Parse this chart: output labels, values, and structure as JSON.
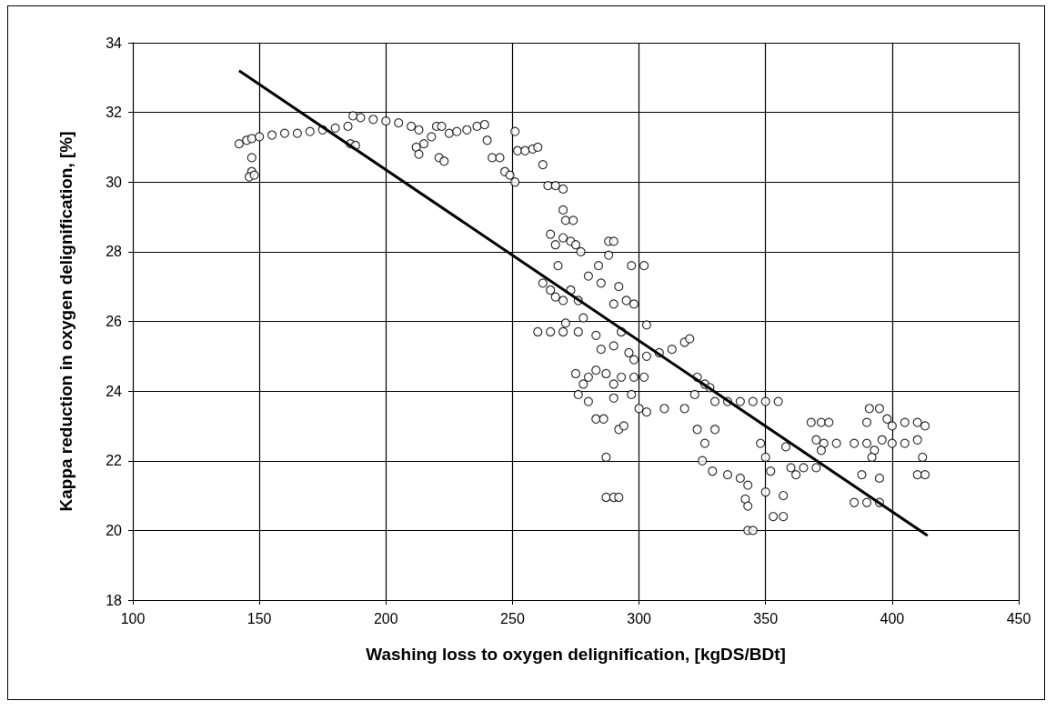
{
  "chart_data": {
    "type": "scatter",
    "xlabel": "Washing loss to oxygen delignification, [kgDS/BDt]",
    "ylabel": "Kappa reduction in oxygen delignification, [%]",
    "xlim": [
      100,
      450
    ],
    "xticks": [
      100,
      150,
      200,
      250,
      300,
      350,
      400,
      450
    ],
    "ylim": [
      18,
      34
    ],
    "yticks": [
      18,
      20,
      22,
      24,
      26,
      28,
      30,
      32,
      34
    ],
    "grid": true,
    "series": [
      {
        "color": "#000000",
        "marker": "circle",
        "x": [
          142,
          145,
          147,
          150,
          155,
          160,
          165,
          170,
          175,
          180,
          185,
          187,
          190,
          195,
          200,
          205,
          210,
          213,
          147,
          147,
          146,
          148,
          186,
          188,
          212,
          213,
          215,
          218,
          220,
          222,
          221,
          223,
          225,
          228,
          232,
          236,
          239,
          240,
          242,
          245,
          247,
          249,
          251,
          251,
          252,
          255,
          258,
          260,
          262,
          264,
          267,
          270,
          270,
          271,
          274,
          265,
          267,
          270,
          273,
          268,
          275,
          277,
          262,
          265,
          267,
          270,
          273,
          276,
          280,
          284,
          288,
          290,
          288,
          285,
          292,
          297,
          302,
          295,
          298,
          290,
          278,
          271,
          260,
          265,
          270,
          276,
          283,
          285,
          290,
          293,
          296,
          298,
          303,
          275,
          278,
          280,
          283,
          287,
          290,
          293,
          298,
          302,
          276,
          280,
          283,
          286,
          290,
          292,
          294,
          297,
          300,
          303,
          287,
          287,
          290,
          292,
          303,
          308,
          313,
          318,
          320,
          323,
          322,
          310,
          318,
          326,
          328,
          330,
          335,
          340,
          345,
          350,
          355,
          323,
          330,
          326,
          325,
          329,
          335,
          340,
          343,
          342,
          343,
          343,
          345,
          348,
          350,
          352,
          350,
          353,
          357,
          358,
          360,
          362,
          357,
          365,
          370,
          373,
          378,
          385,
          368,
          372,
          375,
          370,
          372,
          388,
          395,
          385,
          390,
          395,
          390,
          393,
          391,
          395,
          390,
          398,
          400,
          405,
          410,
          413,
          400,
          405,
          410,
          412,
          410,
          413,
          396,
          392
        ],
        "values": [
          31.1,
          31.2,
          31.25,
          31.3,
          31.35,
          31.4,
          31.4,
          31.45,
          31.5,
          31.55,
          31.6,
          31.9,
          31.85,
          31.8,
          31.75,
          31.7,
          31.6,
          31.5,
          30.7,
          30.3,
          30.15,
          30.2,
          31.1,
          31.05,
          31.0,
          30.8,
          31.1,
          31.3,
          31.6,
          31.6,
          30.7,
          30.6,
          31.4,
          31.45,
          31.5,
          31.6,
          31.65,
          31.2,
          30.7,
          30.7,
          30.3,
          30.2,
          31.45,
          30.0,
          30.9,
          30.9,
          30.95,
          31.0,
          30.5,
          29.9,
          29.9,
          29.8,
          29.2,
          28.9,
          28.9,
          28.5,
          28.2,
          28.4,
          28.3,
          27.6,
          28.2,
          28.0,
          27.1,
          26.9,
          26.7,
          26.6,
          26.9,
          26.6,
          27.3,
          27.6,
          28.3,
          28.3,
          27.9,
          27.1,
          27.0,
          27.6,
          27.6,
          26.6,
          26.5,
          26.5,
          26.1,
          25.95,
          25.7,
          25.7,
          25.7,
          25.7,
          25.6,
          25.2,
          25.3,
          25.7,
          25.1,
          24.9,
          25.9,
          24.5,
          24.2,
          24.4,
          24.6,
          24.5,
          24.2,
          24.4,
          24.4,
          24.4,
          23.9,
          23.7,
          23.2,
          23.2,
          23.8,
          22.9,
          23.0,
          23.9,
          23.5,
          23.4,
          22.1,
          20.95,
          20.95,
          20.95,
          25.0,
          25.1,
          25.2,
          25.4,
          25.5,
          24.4,
          23.9,
          23.5,
          23.5,
          24.2,
          24.1,
          23.7,
          23.7,
          23.7,
          23.7,
          23.7,
          23.7,
          22.9,
          22.9,
          22.5,
          22.0,
          21.7,
          21.6,
          21.5,
          21.3,
          20.9,
          20.7,
          20.0,
          20.0,
          22.5,
          22.1,
          21.7,
          21.1,
          20.4,
          20.4,
          22.4,
          21.8,
          21.6,
          21.0,
          21.8,
          21.8,
          22.5,
          22.5,
          22.5,
          23.1,
          23.1,
          23.1,
          22.6,
          22.3,
          21.6,
          21.5,
          20.8,
          20.8,
          20.8,
          22.5,
          22.3,
          23.5,
          23.5,
          23.1,
          23.2,
          23.0,
          23.1,
          23.1,
          23.0,
          22.5,
          22.5,
          22.6,
          22.1,
          21.6,
          21.6,
          22.6,
          22.1
        ]
      },
      {
        "type": "line",
        "color": "#000000",
        "marker": "none",
        "line_style": "solid",
        "x": [
          142,
          414
        ],
        "values": [
          33.2,
          19.85
        ]
      }
    ]
  }
}
